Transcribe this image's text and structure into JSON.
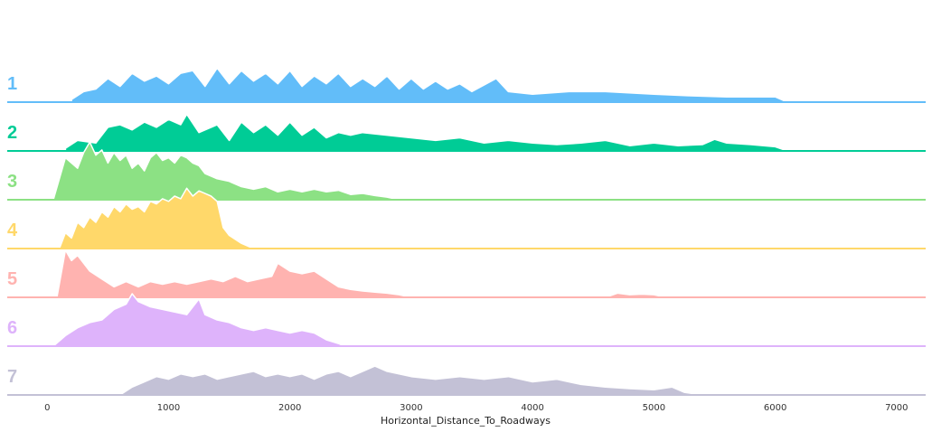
{
  "chart_data": {
    "type": "area",
    "style": "ridgeline",
    "xlabel": "Horizontal_Distance_To_Roadways",
    "xlim": [
      -330,
      7240
    ],
    "x_ticks": [
      0,
      1000,
      2000,
      3000,
      4000,
      5000,
      6000,
      7000
    ],
    "x_tick_labels": [
      "0",
      "1000",
      "2000",
      "3000",
      "4000",
      "5000",
      "6000",
      "7000"
    ],
    "grid": false,
    "legend": "none",
    "series": [
      {
        "name": "1",
        "color": "#62bdf9",
        "points": [
          [
            200,
            0.05
          ],
          [
            300,
            0.2
          ],
          [
            400,
            0.25
          ],
          [
            500,
            0.45
          ],
          [
            600,
            0.3
          ],
          [
            700,
            0.55
          ],
          [
            800,
            0.4
          ],
          [
            900,
            0.5
          ],
          [
            1000,
            0.35
          ],
          [
            1100,
            0.55
          ],
          [
            1200,
            0.6
          ],
          [
            1300,
            0.3
          ],
          [
            1400,
            0.65
          ],
          [
            1500,
            0.35
          ],
          [
            1600,
            0.6
          ],
          [
            1700,
            0.4
          ],
          [
            1800,
            0.55
          ],
          [
            1900,
            0.35
          ],
          [
            2000,
            0.6
          ],
          [
            2100,
            0.3
          ],
          [
            2200,
            0.5
          ],
          [
            2300,
            0.35
          ],
          [
            2400,
            0.55
          ],
          [
            2500,
            0.3
          ],
          [
            2600,
            0.45
          ],
          [
            2700,
            0.3
          ],
          [
            2800,
            0.5
          ],
          [
            2900,
            0.25
          ],
          [
            3000,
            0.45
          ],
          [
            3100,
            0.25
          ],
          [
            3200,
            0.4
          ],
          [
            3300,
            0.25
          ],
          [
            3400,
            0.35
          ],
          [
            3500,
            0.2
          ],
          [
            3700,
            0.45
          ],
          [
            3800,
            0.2
          ],
          [
            4000,
            0.15
          ],
          [
            4300,
            0.2
          ],
          [
            4600,
            0.2
          ],
          [
            5000,
            0.15
          ],
          [
            5300,
            0.12
          ],
          [
            5600,
            0.1
          ],
          [
            5800,
            0.1
          ],
          [
            6000,
            0.1
          ],
          [
            6100,
            0.0
          ]
        ]
      },
      {
        "name": "2",
        "color": "#00cc96",
        "points": [
          [
            150,
            0.05
          ],
          [
            250,
            0.2
          ],
          [
            400,
            0.15
          ],
          [
            500,
            0.45
          ],
          [
            600,
            0.5
          ],
          [
            700,
            0.4
          ],
          [
            800,
            0.55
          ],
          [
            900,
            0.45
          ],
          [
            1000,
            0.6
          ],
          [
            1100,
            0.5
          ],
          [
            1150,
            0.7
          ],
          [
            1250,
            0.35
          ],
          [
            1400,
            0.5
          ],
          [
            1500,
            0.2
          ],
          [
            1600,
            0.55
          ],
          [
            1700,
            0.35
          ],
          [
            1800,
            0.5
          ],
          [
            1900,
            0.3
          ],
          [
            2000,
            0.55
          ],
          [
            2100,
            0.3
          ],
          [
            2200,
            0.45
          ],
          [
            2300,
            0.25
          ],
          [
            2400,
            0.35
          ],
          [
            2500,
            0.3
          ],
          [
            2600,
            0.35
          ],
          [
            2800,
            0.3
          ],
          [
            3000,
            0.25
          ],
          [
            3200,
            0.2
          ],
          [
            3400,
            0.25
          ],
          [
            3600,
            0.15
          ],
          [
            3800,
            0.2
          ],
          [
            4000,
            0.15
          ],
          [
            4200,
            0.12
          ],
          [
            4400,
            0.15
          ],
          [
            4600,
            0.2
          ],
          [
            4800,
            0.1
          ],
          [
            5000,
            0.15
          ],
          [
            5200,
            0.1
          ],
          [
            5400,
            0.12
          ],
          [
            5500,
            0.22
          ],
          [
            5600,
            0.15
          ],
          [
            5800,
            0.12
          ],
          [
            6000,
            0.08
          ],
          [
            6100,
            0.0
          ]
        ]
      },
      {
        "name": "3",
        "color": "#8ce184",
        "points": [
          [
            50,
            0.0
          ],
          [
            150,
            0.8
          ],
          [
            250,
            0.6
          ],
          [
            300,
            0.9
          ],
          [
            350,
            1.1
          ],
          [
            400,
            0.85
          ],
          [
            450,
            0.95
          ],
          [
            500,
            0.7
          ],
          [
            550,
            0.9
          ],
          [
            600,
            0.75
          ],
          [
            650,
            0.85
          ],
          [
            700,
            0.6
          ],
          [
            750,
            0.7
          ],
          [
            800,
            0.55
          ],
          [
            850,
            0.8
          ],
          [
            900,
            0.9
          ],
          [
            950,
            0.75
          ],
          [
            1000,
            0.8
          ],
          [
            1050,
            0.7
          ],
          [
            1100,
            0.85
          ],
          [
            1150,
            0.8
          ],
          [
            1200,
            0.7
          ],
          [
            1250,
            0.65
          ],
          [
            1300,
            0.5
          ],
          [
            1400,
            0.4
          ],
          [
            1500,
            0.35
          ],
          [
            1600,
            0.25
          ],
          [
            1700,
            0.2
          ],
          [
            1800,
            0.25
          ],
          [
            1900,
            0.15
          ],
          [
            2000,
            0.2
          ],
          [
            2100,
            0.15
          ],
          [
            2200,
            0.2
          ],
          [
            2300,
            0.15
          ],
          [
            2400,
            0.18
          ],
          [
            2500,
            0.1
          ],
          [
            2600,
            0.12
          ],
          [
            2700,
            0.08
          ],
          [
            2800,
            0.05
          ],
          [
            2900,
            0.0
          ]
        ]
      },
      {
        "name": "4",
        "color": "#ffd86a",
        "points": [
          [
            100,
            0.0
          ],
          [
            150,
            0.3
          ],
          [
            200,
            0.2
          ],
          [
            250,
            0.5
          ],
          [
            300,
            0.4
          ],
          [
            350,
            0.6
          ],
          [
            400,
            0.5
          ],
          [
            450,
            0.7
          ],
          [
            500,
            0.6
          ],
          [
            550,
            0.8
          ],
          [
            600,
            0.7
          ],
          [
            650,
            0.85
          ],
          [
            700,
            0.75
          ],
          [
            750,
            0.8
          ],
          [
            800,
            0.7
          ],
          [
            850,
            0.9
          ],
          [
            900,
            0.85
          ],
          [
            950,
            0.95
          ],
          [
            1000,
            0.9
          ],
          [
            1050,
            1.0
          ],
          [
            1100,
            0.95
          ],
          [
            1150,
            1.15
          ],
          [
            1200,
            1.0
          ],
          [
            1250,
            1.1
          ],
          [
            1300,
            1.05
          ],
          [
            1350,
            1.0
          ],
          [
            1400,
            0.9
          ],
          [
            1450,
            0.4
          ],
          [
            1500,
            0.25
          ],
          [
            1600,
            0.1
          ],
          [
            1700,
            0.0
          ]
        ]
      },
      {
        "name": "5",
        "color": "#ffb3b0",
        "points": [
          [
            80,
            0.0
          ],
          [
            150,
            0.9
          ],
          [
            200,
            0.7
          ],
          [
            250,
            0.8
          ],
          [
            350,
            0.5
          ],
          [
            450,
            0.35
          ],
          [
            550,
            0.2
          ],
          [
            650,
            0.3
          ],
          [
            750,
            0.2
          ],
          [
            850,
            0.3
          ],
          [
            950,
            0.25
          ],
          [
            1050,
            0.3
          ],
          [
            1150,
            0.25
          ],
          [
            1250,
            0.3
          ],
          [
            1350,
            0.35
          ],
          [
            1450,
            0.3
          ],
          [
            1550,
            0.4
          ],
          [
            1650,
            0.3
          ],
          [
            1750,
            0.35
          ],
          [
            1850,
            0.4
          ],
          [
            1900,
            0.65
          ],
          [
            2000,
            0.5
          ],
          [
            2100,
            0.45
          ],
          [
            2200,
            0.5
          ],
          [
            2300,
            0.35
          ],
          [
            2400,
            0.2
          ],
          [
            2500,
            0.15
          ],
          [
            2600,
            0.12
          ],
          [
            2700,
            0.1
          ],
          [
            2800,
            0.08
          ],
          [
            2900,
            0.05
          ],
          [
            3000,
            0.0
          ],
          [
            4600,
            0.0
          ],
          [
            4700,
            0.08
          ],
          [
            4800,
            0.05
          ],
          [
            4900,
            0.06
          ],
          [
            5000,
            0.05
          ],
          [
            5100,
            0.0
          ]
        ]
      },
      {
        "name": "6",
        "color": "#deb3fb",
        "points": [
          [
            50,
            0.0
          ],
          [
            150,
            0.2
          ],
          [
            250,
            0.35
          ],
          [
            350,
            0.45
          ],
          [
            450,
            0.5
          ],
          [
            550,
            0.7
          ],
          [
            650,
            0.8
          ],
          [
            700,
            1.0
          ],
          [
            750,
            0.85
          ],
          [
            850,
            0.75
          ],
          [
            950,
            0.7
          ],
          [
            1050,
            0.65
          ],
          [
            1150,
            0.6
          ],
          [
            1250,
            0.9
          ],
          [
            1300,
            0.6
          ],
          [
            1400,
            0.5
          ],
          [
            1500,
            0.45
          ],
          [
            1600,
            0.35
          ],
          [
            1700,
            0.3
          ],
          [
            1800,
            0.35
          ],
          [
            1900,
            0.3
          ],
          [
            2000,
            0.25
          ],
          [
            2100,
            0.3
          ],
          [
            2200,
            0.25
          ],
          [
            2300,
            0.12
          ],
          [
            2400,
            0.05
          ],
          [
            2450,
            0.0
          ]
        ]
      },
      {
        "name": "7",
        "color": "#c3c1d6",
        "points": [
          [
            600,
            0.0
          ],
          [
            700,
            0.15
          ],
          [
            800,
            0.25
          ],
          [
            900,
            0.35
          ],
          [
            1000,
            0.3
          ],
          [
            1100,
            0.4
          ],
          [
            1200,
            0.35
          ],
          [
            1300,
            0.4
          ],
          [
            1400,
            0.3
          ],
          [
            1500,
            0.35
          ],
          [
            1600,
            0.4
          ],
          [
            1700,
            0.45
          ],
          [
            1800,
            0.35
          ],
          [
            1900,
            0.4
          ],
          [
            2000,
            0.35
          ],
          [
            2100,
            0.4
          ],
          [
            2200,
            0.3
          ],
          [
            2300,
            0.4
          ],
          [
            2400,
            0.45
          ],
          [
            2500,
            0.35
          ],
          [
            2600,
            0.45
          ],
          [
            2700,
            0.55
          ],
          [
            2800,
            0.45
          ],
          [
            2900,
            0.4
          ],
          [
            3000,
            0.35
          ],
          [
            3200,
            0.3
          ],
          [
            3400,
            0.35
          ],
          [
            3600,
            0.3
          ],
          [
            3800,
            0.35
          ],
          [
            4000,
            0.25
          ],
          [
            4200,
            0.3
          ],
          [
            4400,
            0.2
          ],
          [
            4600,
            0.15
          ],
          [
            4800,
            0.12
          ],
          [
            5000,
            0.1
          ],
          [
            5150,
            0.15
          ],
          [
            5250,
            0.05
          ],
          [
            5400,
            0.0
          ]
        ]
      }
    ]
  }
}
